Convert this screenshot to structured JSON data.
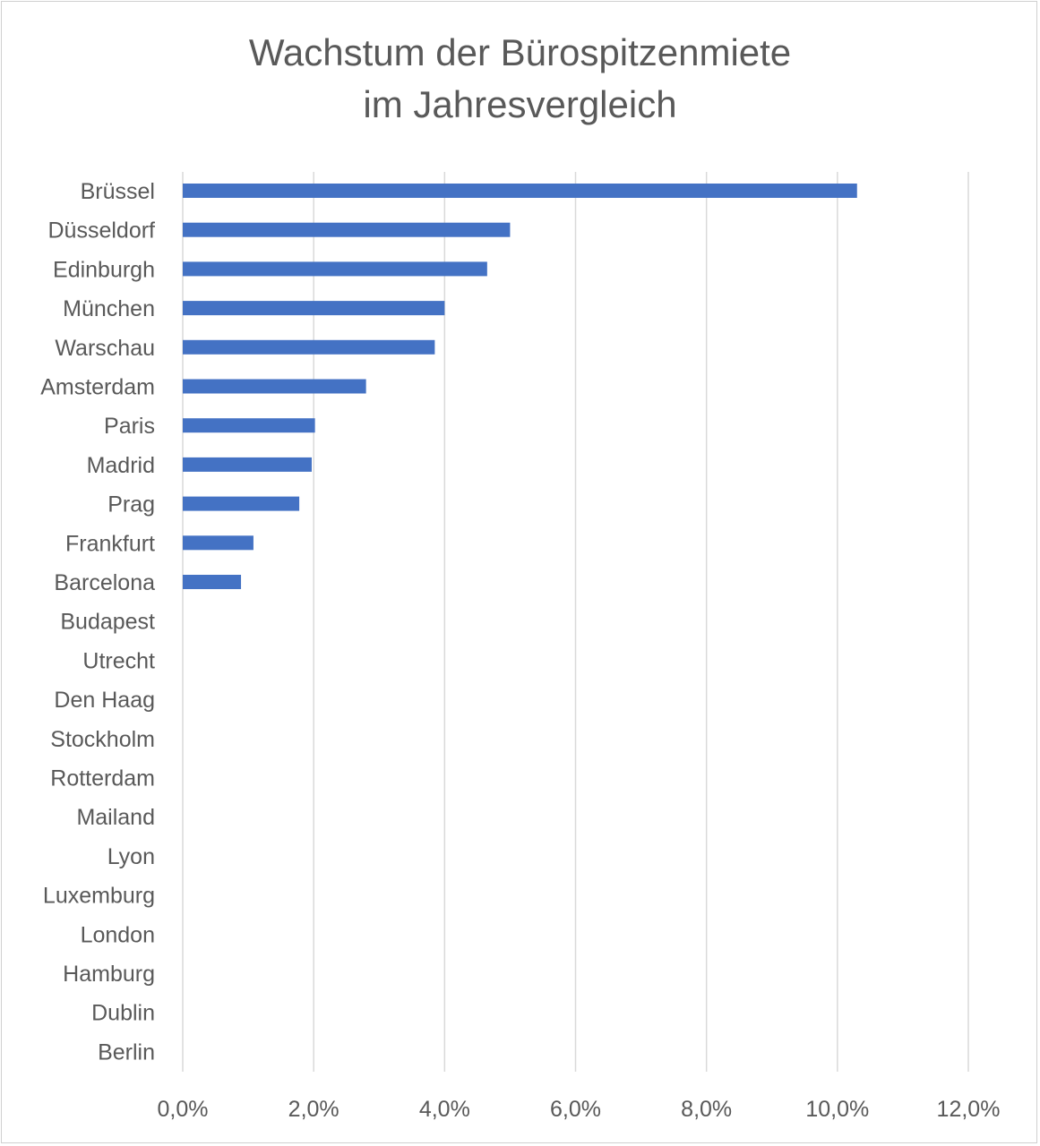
{
  "chart_data": {
    "type": "bar",
    "orientation": "horizontal",
    "title_lines": [
      "Wachstum der Bürospitzenmiete",
      "im Jahresvergleich"
    ],
    "xlabel": "",
    "ylabel": "",
    "xlim": [
      0,
      12
    ],
    "xticks": [
      0,
      2,
      4,
      6,
      8,
      10,
      12
    ],
    "xtick_labels": [
      "0,0%",
      "2,0%",
      "4,0%",
      "6,0%",
      "8,0%",
      "10,0%",
      "12,0%"
    ],
    "grid": "vertical",
    "bar_color": "#4472c4",
    "categories": [
      "Brüssel",
      "Düsseldorf",
      "Edinburgh",
      "München",
      "Warschau",
      "Amsterdam",
      "Paris",
      "Madrid",
      "Prag",
      "Frankfurt",
      "Barcelona",
      "Budapest",
      "Utrecht",
      "Den Haag",
      "Stockholm",
      "Rotterdam",
      "Mailand",
      "Lyon",
      "Luxemburg",
      "London",
      "Hamburg",
      "Dublin",
      "Berlin"
    ],
    "values": [
      10.3,
      5.0,
      4.65,
      4.0,
      3.85,
      2.8,
      2.02,
      1.97,
      1.78,
      1.08,
      0.89,
      0,
      0,
      0,
      0,
      0,
      0,
      0,
      0,
      0,
      0,
      0,
      0
    ]
  }
}
